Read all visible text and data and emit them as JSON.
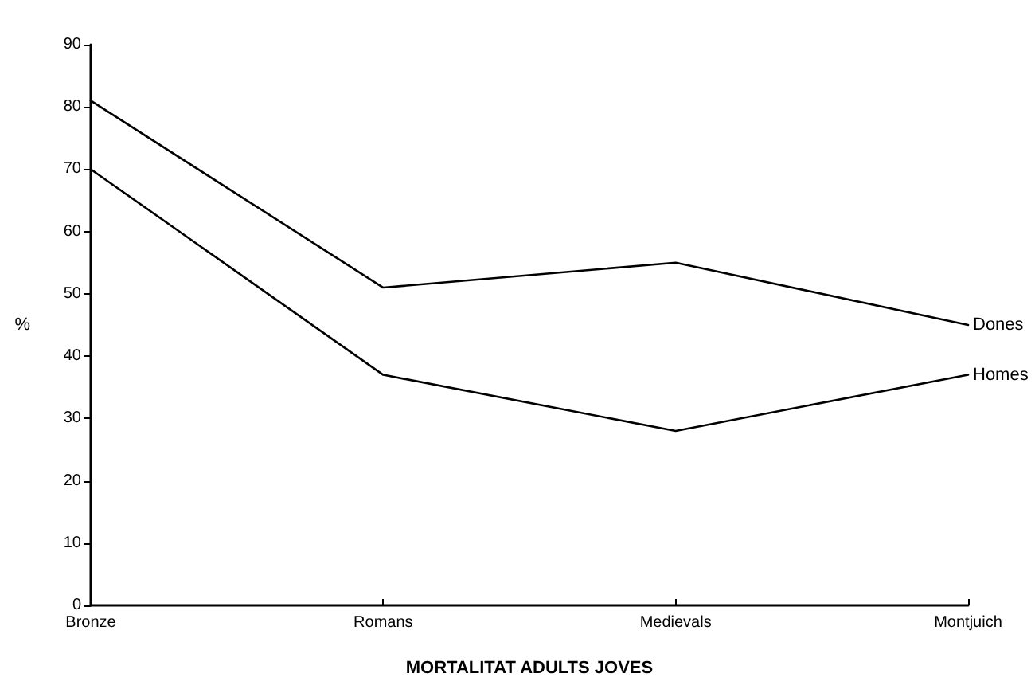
{
  "chart_data": {
    "type": "line",
    "xlabel": "MORTALITAT ADULTS JOVES",
    "ylabel": "%",
    "categories": [
      "Bronze",
      "Romans",
      "Medievals",
      "Montjuich"
    ],
    "series": [
      {
        "name": "Dones",
        "color": "#000000",
        "values": [
          81,
          51,
          55,
          45
        ]
      },
      {
        "name": "Homes",
        "color": "#000000",
        "values": [
          70,
          37,
          28,
          37
        ]
      }
    ],
    "ylim": [
      0,
      90
    ],
    "yticks": [
      0,
      10,
      20,
      30,
      40,
      50,
      60,
      70,
      80,
      90
    ],
    "grid": false,
    "legend": false,
    "marker": "none",
    "line_style": "solid"
  }
}
